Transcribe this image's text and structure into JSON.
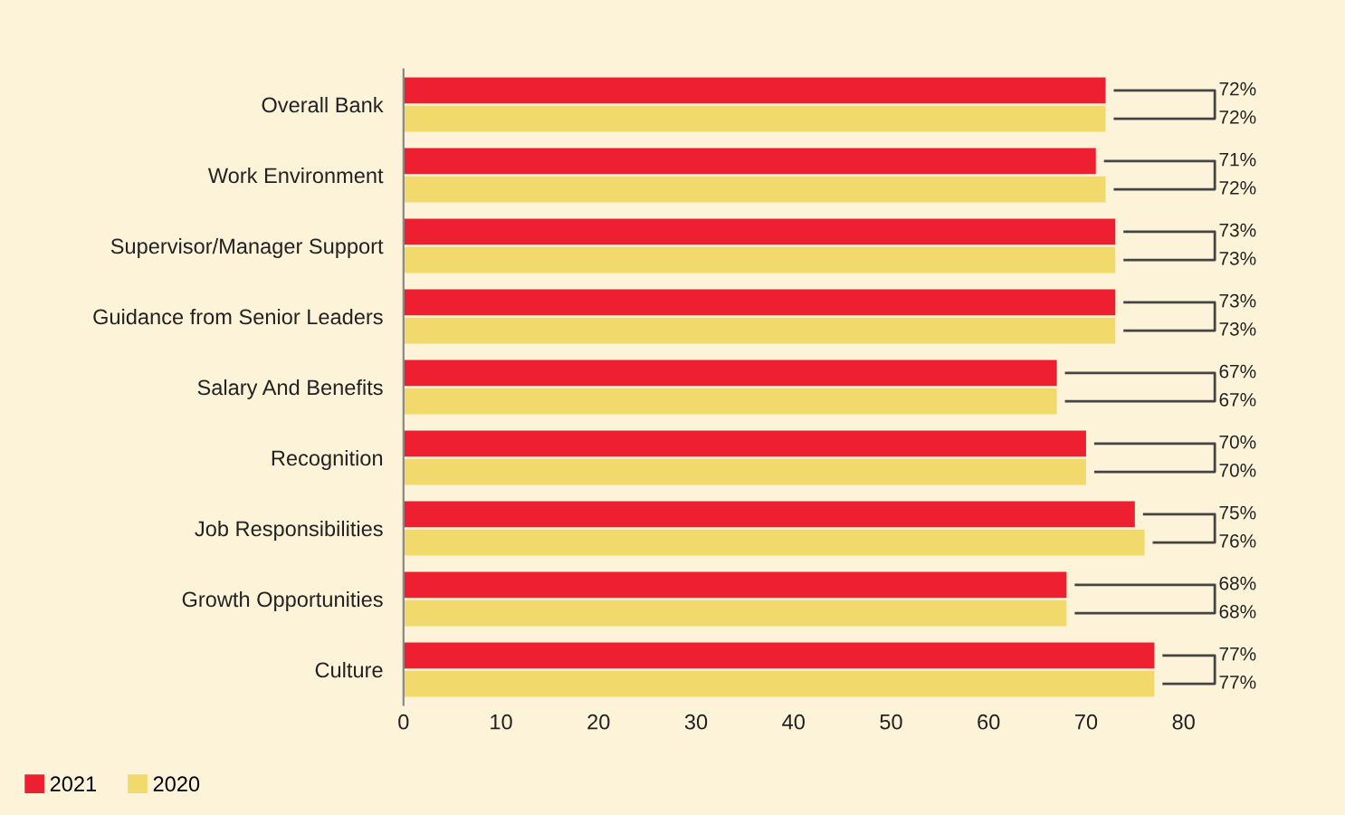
{
  "chart_data": {
    "type": "bar",
    "orientation": "horizontal",
    "categories": [
      "Overall Bank",
      "Work Environment",
      "Supervisor/Manager Support",
      "Guidance from Senior Leaders",
      "Salary And Benefits",
      "Recognition",
      "Job Responsibilities",
      "Growth Opportunities",
      "Culture"
    ],
    "series": [
      {
        "name": "2021",
        "color": "#ee1f30",
        "values": [
          72,
          71,
          73,
          73,
          67,
          70,
          75,
          68,
          77
        ],
        "value_labels": [
          "72%",
          "71%",
          "73%",
          "73%",
          "67%",
          "70%",
          "75%",
          "68%",
          "77%"
        ]
      },
      {
        "name": "2020",
        "color": "#f2d96b",
        "values": [
          72,
          72,
          73,
          73,
          67,
          70,
          76,
          68,
          77
        ],
        "value_labels": [
          "72%",
          "72%",
          "73%",
          "73%",
          "67%",
          "70%",
          "76%",
          "68%",
          "77%"
        ]
      }
    ],
    "xlim": [
      0,
      80
    ],
    "xticks": [
      0,
      10,
      20,
      30,
      40,
      50,
      60,
      70,
      80
    ],
    "grid": false,
    "legend": "bottom left"
  }
}
